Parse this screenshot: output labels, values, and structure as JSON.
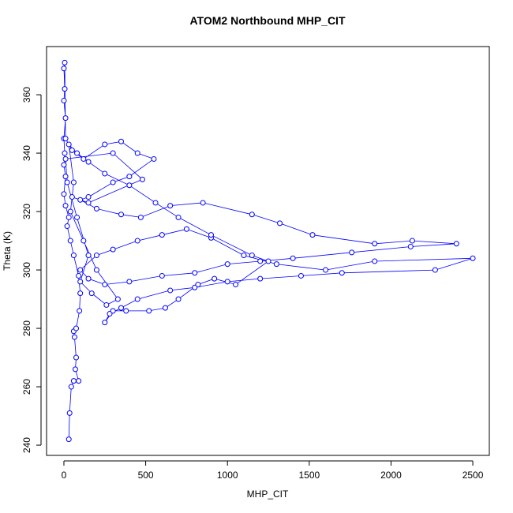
{
  "chart_data": {
    "type": "line",
    "title": "ATOM2 Northbound MHP_CIT",
    "x_label": "MHP_CIT",
    "y_label": "Theta (K)",
    "color": "#0000ff",
    "markers": true,
    "xlim": [
      -106,
      2601
    ],
    "ylim": [
      236.5,
      376.5
    ],
    "xticks": [
      0,
      500,
      1000,
      1500,
      2000,
      2500
    ],
    "yticks": [
      240,
      260,
      280,
      300,
      320,
      340,
      360
    ],
    "x": [
      30,
      35,
      45,
      60,
      90,
      70,
      75,
      65,
      60,
      75,
      95,
      100,
      90,
      60,
      40,
      20,
      30,
      10,
      0,
      10,
      0,
      5,
      0,
      10,
      0,
      5,
      0,
      5,
      10,
      50,
      120,
      250,
      350,
      450,
      550,
      400,
      300,
      150,
      100,
      200,
      350,
      470,
      650,
      850,
      1150,
      1320,
      1520,
      1900,
      2130,
      2400,
      2120,
      1760,
      1400,
      1200,
      1000,
      800,
      600,
      400,
      250,
      150,
      100,
      200,
      300,
      450,
      600,
      750,
      900,
      1100,
      1300,
      1600,
      1900,
      2500,
      2270,
      1700,
      1450,
      1200,
      1000,
      800,
      650,
      450,
      350,
      280,
      250,
      300,
      380,
      520,
      620,
      700,
      820,
      920,
      1050,
      1250,
      1150,
      900,
      700,
      560,
      400,
      250,
      150,
      80,
      30,
      60,
      40,
      120,
      200,
      330,
      260,
      170,
      100,
      150,
      80,
      20,
      10,
      300,
      480,
      150,
      50
    ],
    "values": [
      242,
      251,
      260,
      262,
      262,
      266,
      270,
      277,
      279,
      280,
      286,
      292,
      298,
      305,
      310,
      315,
      318,
      322,
      326,
      332,
      336,
      340,
      345,
      352,
      358,
      362,
      369,
      371,
      345,
      341,
      338,
      343,
      344,
      340,
      338,
      332,
      330,
      325,
      324,
      321,
      319,
      318,
      322,
      323,
      319,
      316,
      312,
      309,
      310,
      309,
      308,
      306,
      304,
      303,
      302,
      299,
      298,
      296,
      295,
      297,
      300,
      305,
      307,
      310,
      312,
      314,
      311,
      305,
      302,
      300,
      303,
      304,
      300,
      299,
      298,
      297,
      296,
      294,
      293,
      290,
      287,
      285,
      282,
      286,
      286,
      286,
      287,
      290,
      295,
      297,
      295,
      303,
      305,
      312,
      318,
      323,
      329,
      333,
      337,
      340,
      343,
      330,
      320,
      310,
      300,
      290,
      288,
      292,
      296,
      305,
      318,
      330,
      338,
      340,
      331,
      323,
      325
    ]
  }
}
